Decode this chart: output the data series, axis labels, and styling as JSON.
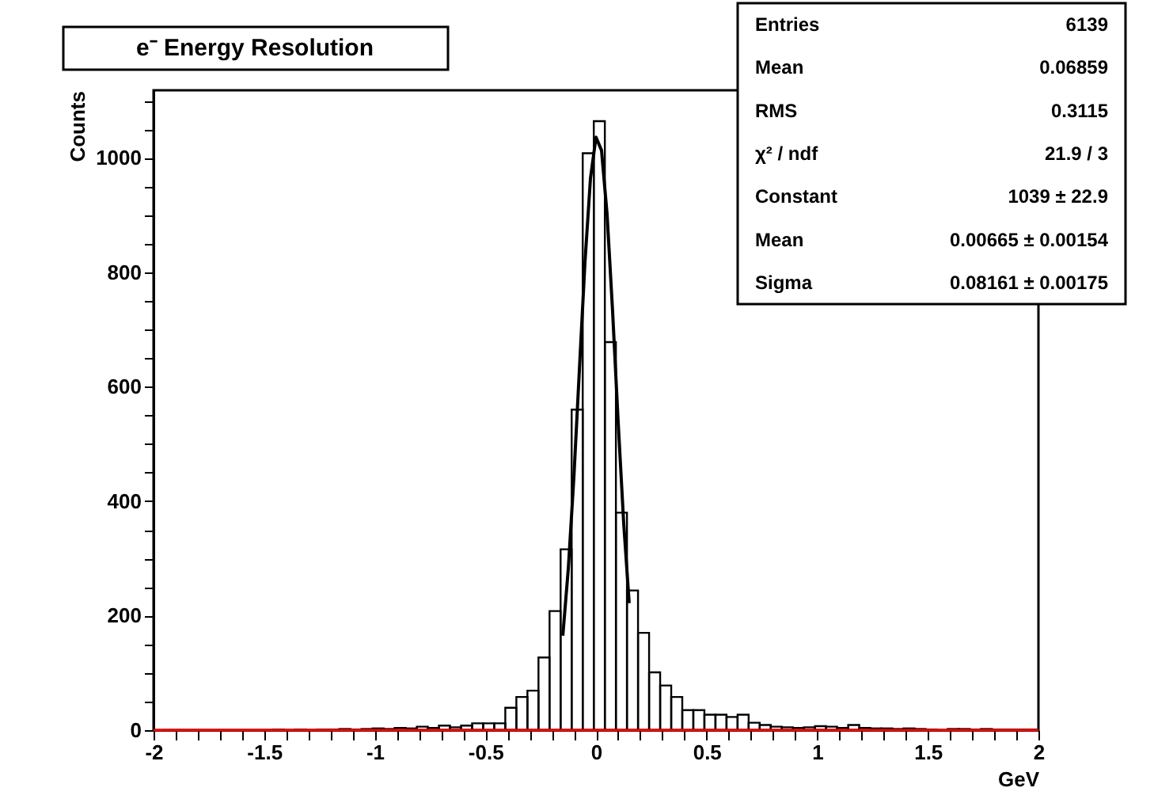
{
  "chart_data": {
    "type": "histogram",
    "title": "e⁻ Energy Resolution",
    "xlabel": "GeV",
    "ylabel": "Counts",
    "color": "#000000",
    "bins": [
      -1.96,
      -1.91,
      -1.86,
      -1.81,
      -1.76,
      -1.71,
      -1.66,
      -1.61,
      -1.56,
      -1.51,
      -1.46,
      -1.41,
      -1.36,
      -1.31,
      -1.26,
      -1.21,
      -1.16,
      -1.11,
      -1.06,
      -1.01,
      -0.96,
      -0.91,
      -0.86,
      -0.81,
      -0.76,
      -0.71,
      -0.66,
      -0.61,
      -0.56,
      -0.51,
      -0.46,
      -0.41,
      -0.36,
      -0.31,
      -0.26,
      -0.21,
      -0.16,
      -0.11,
      -0.06,
      -0.01,
      0.04,
      0.09,
      0.14,
      0.19,
      0.24,
      0.29,
      0.34,
      0.39,
      0.44,
      0.49,
      0.54,
      0.59,
      0.64,
      0.69,
      0.74,
      0.79,
      0.84,
      0.89,
      0.94,
      0.99,
      1.04,
      1.09,
      1.14,
      1.19,
      1.24,
      1.29,
      1.34,
      1.39,
      1.44,
      1.49,
      1.54,
      1.59,
      1.64,
      1.69,
      1.74,
      1.79,
      1.84,
      1.89,
      1.94,
      1.99
    ],
    "values": [
      0,
      0,
      0,
      0,
      0,
      0,
      0,
      0,
      0,
      0,
      1,
      0,
      1,
      0,
      1,
      1,
      2,
      1,
      2,
      3,
      2,
      4,
      3,
      6,
      4,
      8,
      5,
      8,
      12,
      12,
      12,
      39,
      58,
      69,
      127,
      208,
      316,
      560,
      1008,
      1064,
      678,
      380,
      244,
      170,
      101,
      78,
      58,
      35,
      35,
      27,
      27,
      23,
      27,
      13,
      9,
      6,
      5,
      4,
      5,
      7,
      6,
      4,
      9,
      4,
      3,
      3,
      2,
      3,
      2,
      1,
      0,
      2,
      2,
      1,
      2,
      1,
      1,
      1,
      1
    ],
    "series": [
      {
        "type": "line",
        "color": "#000000",
        "x": [
          -0.15,
          -0.125,
          -0.1,
          -0.075,
          -0.05,
          -0.025,
          0,
          0.025,
          0.05,
          0.075,
          0.1,
          0.125,
          0.15
        ],
        "values": [
          165,
          283,
          442,
          630,
          817,
          964,
          1036,
          1013,
          902,
          732,
          540,
          363,
          222
        ]
      }
    ],
    "xlim": [
      -2,
      2
    ],
    "ylim": [
      0,
      1118
    ],
    "xticks": [
      -2,
      {
        "value": -1.9,
        "label": null
      },
      {
        "value": -1.8,
        "label": null
      },
      {
        "value": -1.7,
        "label": null
      },
      {
        "value": -1.6,
        "label": null
      },
      -1.5,
      {
        "value": -1.4,
        "label": null
      },
      {
        "value": -1.3,
        "label": null
      },
      {
        "value": -1.2,
        "label": null
      },
      {
        "value": -1.1,
        "label": null
      },
      -1,
      {
        "value": -0.9,
        "label": null
      },
      {
        "value": -0.8,
        "label": null
      },
      {
        "value": -0.7,
        "label": null
      },
      {
        "value": -0.6,
        "label": null
      },
      -0.5,
      {
        "value": -0.4,
        "label": null
      },
      {
        "value": -0.3,
        "label": null
      },
      {
        "value": -0.2,
        "label": null
      },
      {
        "value": -0.1,
        "label": null
      },
      0,
      {
        "value": 0.1,
        "label": null
      },
      {
        "value": 0.2,
        "label": null
      },
      {
        "value": 0.3,
        "label": null
      },
      {
        "value": 0.4,
        "label": null
      },
      0.5,
      {
        "value": 0.6,
        "label": null
      },
      {
        "value": 0.7,
        "label": null
      },
      {
        "value": 0.8,
        "label": null
      },
      {
        "value": 0.9,
        "label": null
      },
      1,
      {
        "value": 1.1,
        "label": null
      },
      {
        "value": 1.2,
        "label": null
      },
      {
        "value": 1.3,
        "label": null
      },
      {
        "value": 1.4,
        "label": null
      },
      1.5,
      {
        "value": 1.6,
        "label": null
      },
      {
        "value": 1.7,
        "label": null
      },
      {
        "value": 1.8,
        "label": null
      },
      {
        "value": 1.9,
        "label": null
      },
      2
    ],
    "yticks": [
      0,
      {
        "value": 50,
        "label": null
      },
      {
        "value": 100,
        "label": null
      },
      {
        "value": 150,
        "label": null
      },
      200,
      {
        "value": 250,
        "label": null
      },
      {
        "value": 300,
        "label": null
      },
      {
        "value": 350,
        "label": null
      },
      400,
      {
        "value": 450,
        "label": null
      },
      {
        "value": 500,
        "label": null
      },
      {
        "value": 550,
        "label": null
      },
      600,
      {
        "value": 650,
        "label": null
      },
      {
        "value": 700,
        "label": null
      },
      {
        "value": 750,
        "label": null
      },
      800,
      {
        "value": 850,
        "label": null
      },
      {
        "value": 900,
        "label": null
      },
      {
        "value": 950,
        "label": null
      },
      1000,
      {
        "value": 1050,
        "label": null
      },
      {
        "value": 1100,
        "label": null
      }
    ],
    "ref_lines": [
      {
        "axis": "y",
        "value": 0,
        "color": "#ff0000"
      }
    ],
    "grid": false,
    "annotations": [
      "Entries",
      "6139",
      "Mean",
      "0.06859",
      "RMS",
      "0.3115",
      "χ² / ndf",
      "21.9 / 3",
      "Constant",
      "1039 ± 22.9",
      "Mean",
      "0.00665 ± 0.00154",
      "Sigma",
      "0.08161 ± 0.00175"
    ]
  }
}
